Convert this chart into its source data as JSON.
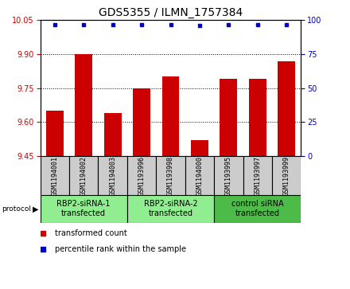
{
  "title": "GDS5355 / ILMN_1757384",
  "samples": [
    "GSM1194001",
    "GSM1194002",
    "GSM1194003",
    "GSM1193996",
    "GSM1193998",
    "GSM1194000",
    "GSM1193995",
    "GSM1193997",
    "GSM1193999"
  ],
  "transformed_counts": [
    9.65,
    9.9,
    9.64,
    9.75,
    9.8,
    9.52,
    9.79,
    9.79,
    9.87
  ],
  "percentile_ranks": [
    97,
    97,
    97,
    97,
    97,
    96,
    97,
    97,
    97
  ],
  "ylim_left": [
    9.45,
    10.05
  ],
  "ylim_right": [
    0,
    100
  ],
  "yticks_left": [
    9.45,
    9.6,
    9.75,
    9.9,
    10.05
  ],
  "yticks_right": [
    0,
    25,
    50,
    75,
    100
  ],
  "groups": [
    {
      "label": "RBP2-siRNA-1\ntransfected",
      "start": 0,
      "end": 3,
      "color": "#90EE90"
    },
    {
      "label": "RBP2-siRNA-2\ntransfected",
      "start": 3,
      "end": 6,
      "color": "#90EE90"
    },
    {
      "label": "control siRNA\ntransfected",
      "start": 6,
      "end": 9,
      "color": "#4CBB47"
    }
  ],
  "bar_color": "#CC0000",
  "dot_color": "#0000CC",
  "bar_width": 0.6,
  "sample_box_color": "#CCCCCC",
  "title_fontsize": 10,
  "tick_fontsize": 7,
  "sample_fontsize": 6,
  "group_fontsize": 7,
  "legend_fontsize": 7
}
